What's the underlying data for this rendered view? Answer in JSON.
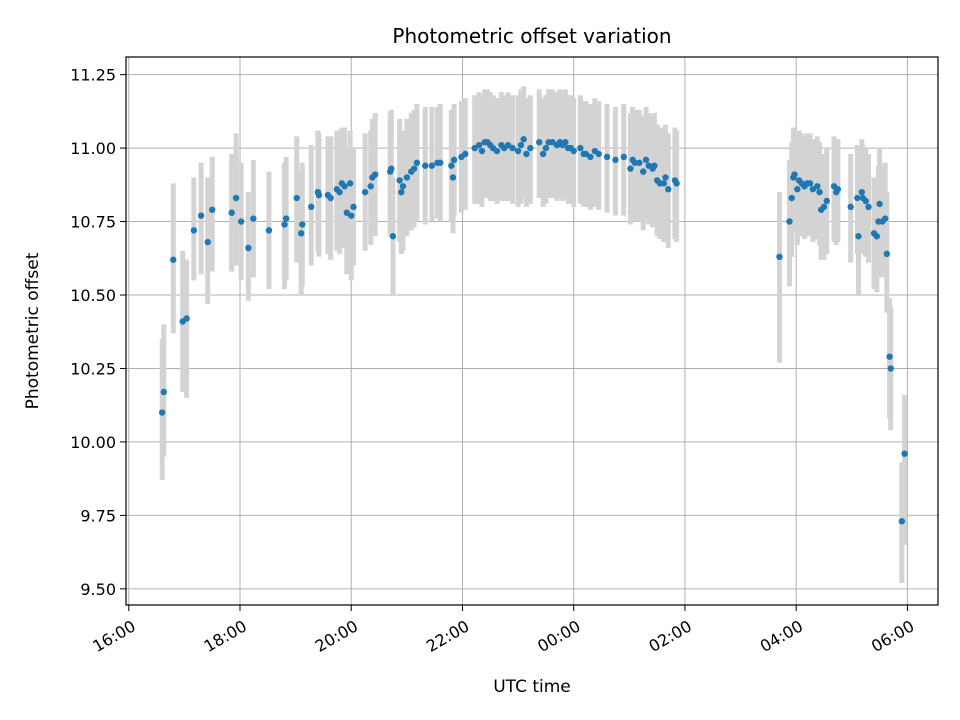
{
  "chart_data": {
    "type": "scatter",
    "title": "Photometric offset variation",
    "xlabel": "UTC time",
    "ylabel": "Photometric offset",
    "x_unit": "UTC hour (start day 16:00 to next day 06:30; values past 24 are after midnight)",
    "xlim": [
      15.95,
      30.55
    ],
    "ylim": [
      9.445,
      11.31
    ],
    "x_ticks": [
      {
        "value": 16,
        "label": "16:00"
      },
      {
        "value": 18,
        "label": "18:00"
      },
      {
        "value": 20,
        "label": "20:00"
      },
      {
        "value": 22,
        "label": "22:00"
      },
      {
        "value": 24,
        "label": "00:00"
      },
      {
        "value": 26,
        "label": "02:00"
      },
      {
        "value": 28,
        "label": "04:00"
      },
      {
        "value": 30,
        "label": "06:00"
      }
    ],
    "y_ticks": [
      {
        "value": 9.5,
        "label": "9.50"
      },
      {
        "value": 9.75,
        "label": "9.75"
      },
      {
        "value": 10.0,
        "label": "10.00"
      },
      {
        "value": 10.25,
        "label": "10.25"
      },
      {
        "value": 10.5,
        "label": "10.50"
      },
      {
        "value": 10.75,
        "label": "10.75"
      },
      {
        "value": 11.0,
        "label": "11.00"
      },
      {
        "value": 11.25,
        "label": "11.25"
      }
    ],
    "grid": true,
    "colors": {
      "point": "#1f77b4",
      "errorbar": "#d3d3d3",
      "grid": "#b0b0b0"
    },
    "series": [
      {
        "points": [
          [
            16.6,
            10.1,
            10.35,
            9.87
          ],
          [
            16.63,
            10.17,
            10.4,
            9.95
          ],
          [
            16.8,
            10.62,
            10.88,
            10.37
          ],
          [
            16.97,
            10.41,
            10.65,
            10.17
          ],
          [
            17.04,
            10.42,
            10.62,
            10.15
          ],
          [
            17.17,
            10.72,
            10.9,
            10.55
          ],
          [
            17.3,
            10.77,
            10.95,
            10.57
          ],
          [
            17.42,
            10.68,
            10.9,
            10.47
          ],
          [
            17.5,
            10.79,
            10.97,
            10.58
          ],
          [
            17.85,
            10.78,
            10.98,
            10.58
          ],
          [
            17.93,
            10.83,
            11.05,
            10.6
          ],
          [
            18.02,
            10.75,
            10.95,
            10.55
          ],
          [
            18.15,
            10.66,
            10.85,
            10.48
          ],
          [
            18.24,
            10.76,
            10.96,
            10.56
          ],
          [
            18.52,
            10.72,
            10.92,
            10.52
          ],
          [
            18.8,
            10.74,
            10.95,
            10.52
          ],
          [
            18.83,
            10.76,
            10.97,
            10.55
          ],
          [
            19.02,
            10.83,
            11.04,
            10.61
          ],
          [
            19.1,
            10.71,
            10.92,
            10.5
          ],
          [
            19.12,
            10.74,
            10.95,
            10.53
          ],
          [
            19.28,
            10.8,
            11.01,
            10.6
          ],
          [
            19.4,
            10.85,
            11.06,
            10.65
          ],
          [
            19.42,
            10.84,
            11.05,
            10.63
          ],
          [
            19.58,
            10.84,
            11.04,
            10.64
          ],
          [
            19.63,
            10.83,
            11.04,
            10.62
          ],
          [
            19.74,
            10.86,
            11.06,
            10.65
          ],
          [
            19.79,
            10.85,
            11.05,
            10.64
          ],
          [
            19.83,
            10.88,
            11.07,
            10.67
          ],
          [
            19.88,
            10.87,
            11.07,
            10.66
          ],
          [
            19.92,
            10.78,
            11.0,
            10.57
          ],
          [
            19.98,
            10.88,
            11.06,
            10.67
          ],
          [
            20.0,
            10.77,
            10.98,
            10.55
          ],
          [
            20.04,
            10.8,
            11.0,
            10.6
          ],
          [
            20.25,
            10.85,
            11.05,
            10.65
          ],
          [
            20.35,
            10.87,
            11.06,
            10.67
          ],
          [
            20.38,
            10.9,
            11.1,
            10.7
          ],
          [
            20.43,
            10.91,
            11.12,
            10.7
          ],
          [
            20.7,
            10.92,
            11.12,
            10.7
          ],
          [
            20.72,
            10.93,
            11.13,
            10.72
          ],
          [
            20.75,
            10.7,
            10.9,
            10.5
          ],
          [
            20.87,
            10.89,
            11.1,
            10.68
          ],
          [
            20.9,
            10.85,
            11.05,
            10.64
          ],
          [
            20.93,
            10.87,
            11.06,
            10.65
          ],
          [
            21.0,
            10.9,
            11.1,
            10.7
          ],
          [
            21.08,
            10.92,
            11.12,
            10.72
          ],
          [
            21.13,
            10.93,
            11.13,
            10.73
          ],
          [
            21.18,
            10.95,
            11.15,
            10.75
          ],
          [
            21.33,
            10.94,
            11.14,
            10.74
          ],
          [
            21.45,
            10.94,
            11.14,
            10.75
          ],
          [
            21.55,
            10.95,
            11.14,
            10.76
          ],
          [
            21.6,
            10.95,
            11.15,
            10.75
          ],
          [
            21.8,
            10.94,
            11.13,
            10.75
          ],
          [
            21.83,
            10.9,
            11.1,
            10.71
          ],
          [
            21.85,
            10.96,
            11.15,
            10.77
          ],
          [
            21.98,
            10.97,
            11.16,
            10.78
          ],
          [
            22.05,
            10.98,
            11.17,
            10.79
          ],
          [
            22.22,
            11.0,
            11.18,
            10.81
          ],
          [
            22.3,
            11.01,
            11.19,
            10.81
          ],
          [
            22.35,
            10.99,
            11.18,
            10.8
          ],
          [
            22.4,
            11.02,
            11.2,
            10.83
          ],
          [
            22.45,
            11.02,
            11.2,
            10.83
          ],
          [
            22.5,
            11.01,
            11.19,
            10.82
          ],
          [
            22.55,
            11.0,
            11.18,
            10.82
          ],
          [
            22.62,
            10.99,
            11.17,
            10.81
          ],
          [
            22.7,
            11.01,
            11.19,
            10.82
          ],
          [
            22.75,
            11.0,
            11.18,
            10.82
          ],
          [
            22.82,
            11.01,
            11.19,
            10.82
          ],
          [
            22.9,
            11.0,
            11.18,
            10.81
          ],
          [
            23.0,
            10.99,
            11.18,
            10.8
          ],
          [
            23.05,
            11.01,
            11.2,
            10.81
          ],
          [
            23.1,
            11.03,
            11.21,
            10.83
          ],
          [
            23.15,
            10.98,
            11.17,
            10.8
          ],
          [
            23.22,
            11.0,
            11.18,
            10.81
          ],
          [
            23.38,
            11.02,
            11.2,
            10.83
          ],
          [
            23.45,
            10.98,
            11.17,
            10.8
          ],
          [
            23.5,
            11.0,
            11.18,
            10.81
          ],
          [
            23.55,
            11.02,
            11.2,
            10.83
          ],
          [
            23.62,
            11.02,
            11.2,
            10.83
          ],
          [
            23.7,
            11.01,
            11.19,
            10.82
          ],
          [
            23.75,
            11.02,
            11.2,
            10.83
          ],
          [
            23.8,
            11.01,
            11.19,
            10.82
          ],
          [
            23.85,
            11.02,
            11.2,
            10.83
          ],
          [
            23.9,
            11.0,
            11.18,
            10.81
          ],
          [
            23.95,
            11.0,
            11.18,
            10.81
          ],
          [
            24.0,
            10.99,
            11.17,
            10.8
          ],
          [
            24.12,
            11.0,
            11.18,
            10.81
          ],
          [
            24.18,
            10.98,
            11.16,
            10.8
          ],
          [
            24.22,
            10.98,
            11.16,
            10.8
          ],
          [
            24.3,
            10.97,
            11.15,
            10.79
          ],
          [
            24.38,
            10.99,
            11.17,
            10.8
          ],
          [
            24.45,
            10.98,
            11.16,
            10.79
          ],
          [
            24.6,
            10.97,
            11.15,
            10.78
          ],
          [
            24.75,
            10.96,
            11.14,
            10.77
          ],
          [
            24.9,
            10.97,
            11.15,
            10.77
          ],
          [
            25.02,
            10.93,
            11.12,
            10.74
          ],
          [
            25.06,
            10.96,
            11.14,
            10.77
          ],
          [
            25.1,
            10.95,
            11.13,
            10.75
          ],
          [
            25.18,
            10.95,
            11.13,
            10.75
          ],
          [
            25.25,
            10.92,
            11.11,
            10.72
          ],
          [
            25.3,
            10.96,
            11.14,
            10.76
          ],
          [
            25.35,
            10.94,
            11.12,
            10.74
          ],
          [
            25.42,
            10.93,
            11.11,
            10.73
          ],
          [
            25.45,
            10.94,
            11.12,
            10.74
          ],
          [
            25.5,
            10.89,
            11.08,
            10.7
          ],
          [
            25.55,
            10.88,
            11.07,
            10.69
          ],
          [
            25.62,
            10.88,
            11.07,
            10.68
          ],
          [
            25.65,
            10.9,
            11.08,
            10.7
          ],
          [
            25.7,
            10.86,
            11.05,
            10.66
          ],
          [
            25.82,
            10.89,
            11.07,
            10.69
          ],
          [
            25.85,
            10.88,
            11.06,
            10.68
          ],
          [
            27.7,
            10.63,
            10.85,
            10.27
          ],
          [
            27.88,
            10.75,
            10.96,
            10.53
          ],
          [
            27.92,
            10.83,
            11.02,
            10.63
          ],
          [
            27.95,
            10.9,
            11.07,
            10.72
          ],
          [
            27.97,
            10.91,
            11.06,
            10.75
          ],
          [
            28.02,
            10.86,
            11.04,
            10.67
          ],
          [
            28.05,
            10.89,
            11.06,
            10.7
          ],
          [
            28.1,
            10.88,
            11.05,
            10.7
          ],
          [
            28.15,
            10.87,
            11.04,
            10.69
          ],
          [
            28.2,
            10.88,
            11.05,
            10.7
          ],
          [
            28.25,
            10.88,
            11.05,
            10.7
          ],
          [
            28.3,
            10.86,
            11.03,
            10.68
          ],
          [
            28.38,
            10.87,
            11.04,
            10.69
          ],
          [
            28.42,
            10.85,
            11.02,
            10.67
          ],
          [
            28.45,
            10.79,
            10.97,
            10.62
          ],
          [
            28.5,
            10.8,
            10.98,
            10.62
          ],
          [
            28.55,
            10.82,
            11.0,
            10.64
          ],
          [
            28.68,
            10.87,
            11.04,
            10.68
          ],
          [
            28.72,
            10.85,
            11.02,
            10.67
          ],
          [
            28.75,
            10.86,
            11.03,
            10.68
          ],
          [
            28.98,
            10.8,
            10.98,
            10.61
          ],
          [
            29.1,
            10.83,
            11.01,
            10.64
          ],
          [
            29.12,
            10.7,
            10.9,
            10.5
          ],
          [
            29.18,
            10.85,
            11.03,
            10.66
          ],
          [
            29.2,
            10.83,
            11.01,
            10.64
          ],
          [
            29.25,
            10.82,
            11.0,
            10.63
          ],
          [
            29.3,
            10.8,
            10.98,
            10.61
          ],
          [
            29.4,
            10.71,
            10.9,
            10.52
          ],
          [
            29.45,
            10.7,
            10.9,
            10.51
          ],
          [
            29.48,
            10.75,
            10.94,
            10.56
          ],
          [
            29.5,
            10.81,
            11.0,
            10.62
          ],
          [
            29.55,
            10.75,
            10.94,
            10.56
          ],
          [
            29.6,
            10.76,
            10.95,
            10.57
          ],
          [
            29.63,
            10.64,
            10.85,
            10.44
          ],
          [
            29.68,
            10.29,
            10.49,
            10.08
          ],
          [
            29.7,
            10.25,
            10.46,
            10.04
          ],
          [
            29.9,
            9.73,
            9.93,
            9.52
          ],
          [
            29.95,
            9.96,
            10.16,
            9.65
          ]
        ]
      }
    ]
  }
}
